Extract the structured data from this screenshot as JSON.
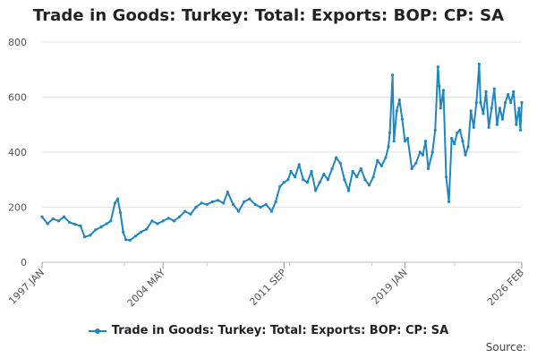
{
  "chart_data": {
    "type": "line",
    "title": "Trade in Goods: Turkey: Total: Exports: BOP: CP: SA",
    "xlabel": "",
    "ylabel": "",
    "ylim": [
      0,
      800
    ],
    "yticks": [
      "0",
      "200",
      "400",
      "600",
      "800"
    ],
    "xlim": [
      "1997-01",
      "2026-02"
    ],
    "xtick_labels": [
      {
        "label": "1997 JAN",
        "date": "1997-01"
      },
      {
        "label": "2004 MAY",
        "date": "2004-05"
      },
      {
        "label": "2011 SEP",
        "date": "2011-09"
      },
      {
        "label": "2019 JAN",
        "date": "2019-01"
      },
      {
        "label": "2026 FEB",
        "date": "2026-02"
      }
    ],
    "grid": "horizontal",
    "legend_position": "bottom",
    "series": [
      {
        "name": "Trade in Goods: Turkey: Total: Exports: BOP: CP: SA",
        "color": "#1f86c2",
        "points": [
          [
            "1997-01",
            165
          ],
          [
            "1997-05",
            140
          ],
          [
            "1997-09",
            158
          ],
          [
            "1998-01",
            150
          ],
          [
            "1998-05",
            165
          ],
          [
            "1998-09",
            145
          ],
          [
            "1999-01",
            138
          ],
          [
            "1999-05",
            132
          ],
          [
            "1999-08",
            92
          ],
          [
            "1999-12",
            98
          ],
          [
            "2000-04",
            118
          ],
          [
            "2000-08",
            128
          ],
          [
            "2000-12",
            140
          ],
          [
            "2001-03",
            150
          ],
          [
            "2001-06",
            215
          ],
          [
            "2001-08",
            230
          ],
          [
            "2001-10",
            180
          ],
          [
            "2001-12",
            110
          ],
          [
            "2002-02",
            82
          ],
          [
            "2002-05",
            80
          ],
          [
            "2002-09",
            95
          ],
          [
            "2003-01",
            110
          ],
          [
            "2003-05",
            120
          ],
          [
            "2003-09",
            150
          ],
          [
            "2004-01",
            140
          ],
          [
            "2004-05",
            150
          ],
          [
            "2004-09",
            160
          ],
          [
            "2005-01",
            150
          ],
          [
            "2005-05",
            165
          ],
          [
            "2005-09",
            185
          ],
          [
            "2006-01",
            175
          ],
          [
            "2006-05",
            200
          ],
          [
            "2006-09",
            215
          ],
          [
            "2007-01",
            210
          ],
          [
            "2007-05",
            220
          ],
          [
            "2007-09",
            225
          ],
          [
            "2008-01",
            215
          ],
          [
            "2008-04",
            255
          ],
          [
            "2008-08",
            210
          ],
          [
            "2008-12",
            185
          ],
          [
            "2009-04",
            220
          ],
          [
            "2009-08",
            230
          ],
          [
            "2009-12",
            210
          ],
          [
            "2010-04",
            200
          ],
          [
            "2010-08",
            210
          ],
          [
            "2010-12",
            185
          ],
          [
            "2011-03",
            220
          ],
          [
            "2011-06",
            275
          ],
          [
            "2011-09",
            290
          ],
          [
            "2011-12",
            300
          ],
          [
            "2012-02",
            330
          ],
          [
            "2012-05",
            310
          ],
          [
            "2012-08",
            355
          ],
          [
            "2012-11",
            300
          ],
          [
            "2013-02",
            290
          ],
          [
            "2013-05",
            330
          ],
          [
            "2013-08",
            260
          ],
          [
            "2013-11",
            290
          ],
          [
            "2014-02",
            320
          ],
          [
            "2014-05",
            300
          ],
          [
            "2014-08",
            340
          ],
          [
            "2014-11",
            380
          ],
          [
            "2015-02",
            360
          ],
          [
            "2015-05",
            300
          ],
          [
            "2015-08",
            260
          ],
          [
            "2015-11",
            330
          ],
          [
            "2016-02",
            310
          ],
          [
            "2016-05",
            340
          ],
          [
            "2016-08",
            300
          ],
          [
            "2016-11",
            280
          ],
          [
            "2017-02",
            310
          ],
          [
            "2017-05",
            370
          ],
          [
            "2017-08",
            350
          ],
          [
            "2017-11",
            380
          ],
          [
            "2018-01",
            420
          ],
          [
            "2018-02",
            470
          ],
          [
            "2018-04",
            680
          ],
          [
            "2018-05",
            440
          ],
          [
            "2018-07",
            550
          ],
          [
            "2018-09",
            590
          ],
          [
            "2018-11",
            520
          ],
          [
            "2019-01",
            440
          ],
          [
            "2019-03",
            450
          ],
          [
            "2019-06",
            340
          ],
          [
            "2019-09",
            360
          ],
          [
            "2019-12",
            400
          ],
          [
            "2020-02",
            390
          ],
          [
            "2020-04",
            440
          ],
          [
            "2020-06",
            340
          ],
          [
            "2020-09",
            400
          ],
          [
            "2020-11",
            480
          ],
          [
            "2021-01",
            710
          ],
          [
            "2021-02",
            640
          ],
          [
            "2021-03",
            560
          ],
          [
            "2021-05",
            625
          ],
          [
            "2021-07",
            310
          ],
          [
            "2021-09",
            220
          ],
          [
            "2021-11",
            450
          ],
          [
            "2022-01",
            430
          ],
          [
            "2022-03",
            470
          ],
          [
            "2022-05",
            480
          ],
          [
            "2022-07",
            440
          ],
          [
            "2022-09",
            390
          ],
          [
            "2022-11",
            420
          ],
          [
            "2023-01",
            550
          ],
          [
            "2023-03",
            490
          ],
          [
            "2023-05",
            580
          ],
          [
            "2023-07",
            720
          ],
          [
            "2023-08",
            580
          ],
          [
            "2023-10",
            540
          ],
          [
            "2023-12",
            620
          ],
          [
            "2024-02",
            490
          ],
          [
            "2024-04",
            560
          ],
          [
            "2024-06",
            630
          ],
          [
            "2024-08",
            500
          ],
          [
            "2024-10",
            560
          ],
          [
            "2024-12",
            520
          ],
          [
            "2025-02",
            580
          ],
          [
            "2025-04",
            610
          ],
          [
            "2025-06",
            580
          ],
          [
            "2025-08",
            620
          ],
          [
            "2025-10",
            500
          ],
          [
            "2025-12",
            560
          ],
          [
            "2026-01",
            480
          ],
          [
            "2026-02",
            580
          ]
        ]
      }
    ],
    "source_label": "Source:"
  }
}
